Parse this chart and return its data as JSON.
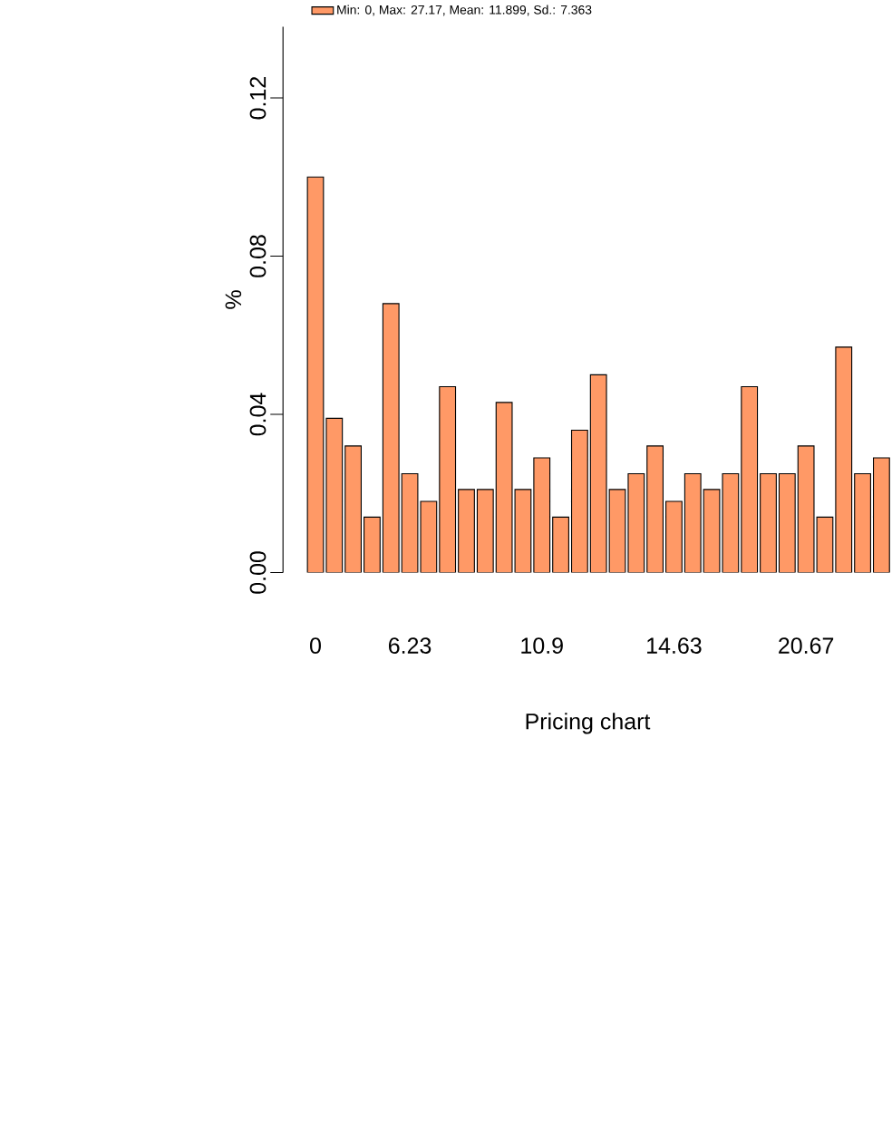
{
  "chart_data": {
    "type": "bar",
    "categories": [
      "0",
      null,
      null,
      null,
      null,
      "6.23",
      null,
      null,
      null,
      null,
      null,
      null,
      "10.9",
      null,
      null,
      null,
      null,
      null,
      null,
      "14.63",
      null,
      null,
      null,
      null,
      null,
      null,
      "20.67",
      null,
      null,
      null,
      null
    ],
    "series": [
      {
        "name": "Min: 0, Max: 27.17, Mean: 11.899, Sd.: 7.363",
        "color": "#ff9966",
        "values": [
          0.1,
          0.039,
          0.032,
          0.014,
          0.068,
          0.025,
          0.018,
          0.047,
          0.021,
          0.021,
          0.043,
          0.021,
          0.029,
          0.014,
          0.036,
          0.05,
          0.021,
          0.025,
          0.032,
          0.018,
          0.025,
          0.021,
          0.025,
          0.047,
          0.025,
          0.025,
          0.032,
          0.014,
          0.057,
          0.025,
          0.029
        ]
      }
    ],
    "ylim": [
      0,
      0.138
    ],
    "yticks": [
      {
        "value": 0,
        "label": "0.00"
      },
      {
        "value": 0.04,
        "label": "0.04"
      },
      {
        "value": 0.08,
        "label": "0.08"
      },
      {
        "value": 0.12,
        "label": "0.12"
      }
    ],
    "xlabel": "Pricing chart",
    "ylabel": "%",
    "legend": "top",
    "grid": false
  }
}
